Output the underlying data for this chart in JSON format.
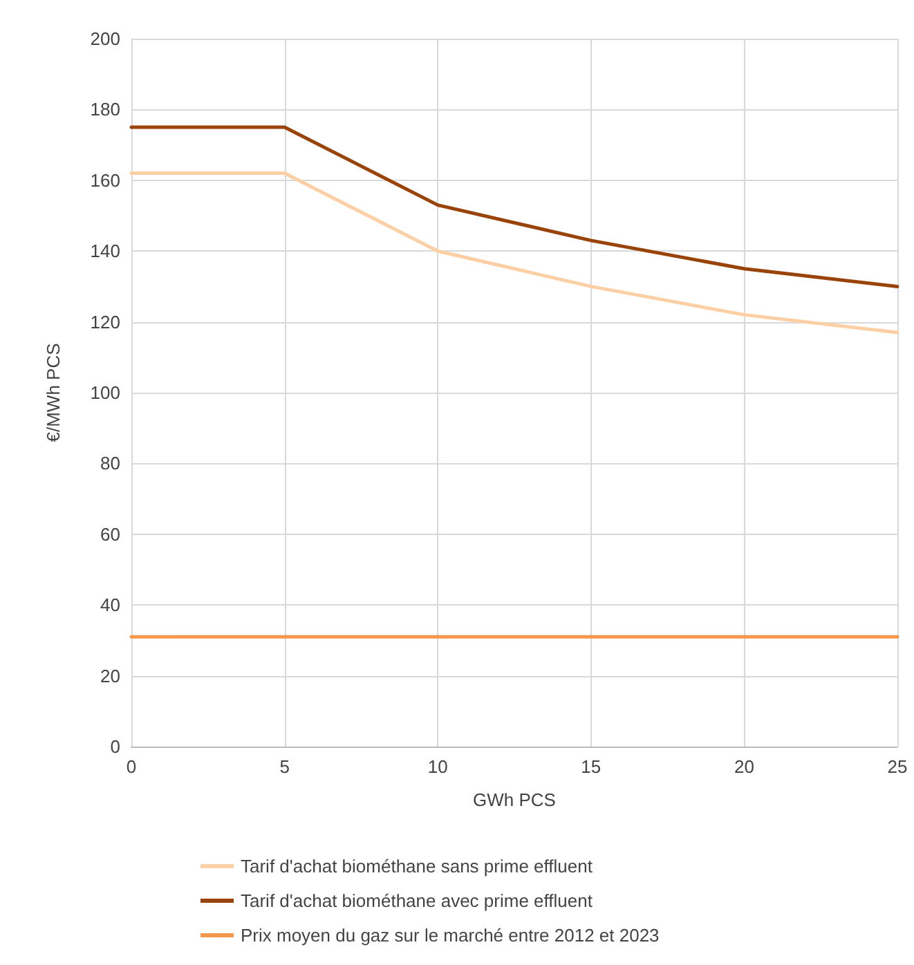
{
  "chart_data": {
    "type": "line",
    "xlabel": "GWh PCS",
    "ylabel": "€/MWh PCS",
    "x": [
      0,
      5,
      10,
      15,
      20,
      25
    ],
    "series": [
      {
        "name": "Tarif d'achat biométhane sans prime effluent",
        "color": "#fdcfa5",
        "values": [
          162,
          162,
          140,
          130,
          122,
          117
        ]
      },
      {
        "name": "Tarif d'achat biométhane avec prime effluent",
        "color": "#9a4309",
        "values": [
          175,
          175,
          153,
          143,
          135,
          130
        ]
      },
      {
        "name": "Prix moyen du gaz sur le marché entre 2012 et 2023",
        "color": "#f4974d",
        "values": [
          31,
          31,
          31,
          31,
          31,
          31
        ]
      }
    ],
    "xlim": [
      0,
      25
    ],
    "xticks": [
      0,
      5,
      10,
      15,
      20,
      25
    ],
    "ylim": [
      0,
      200
    ],
    "yticks": [
      0,
      20,
      40,
      60,
      80,
      100,
      120,
      140,
      160,
      180,
      200
    ],
    "grid": true,
    "legend": "bottom",
    "marker": "none",
    "line_style": "solid"
  }
}
